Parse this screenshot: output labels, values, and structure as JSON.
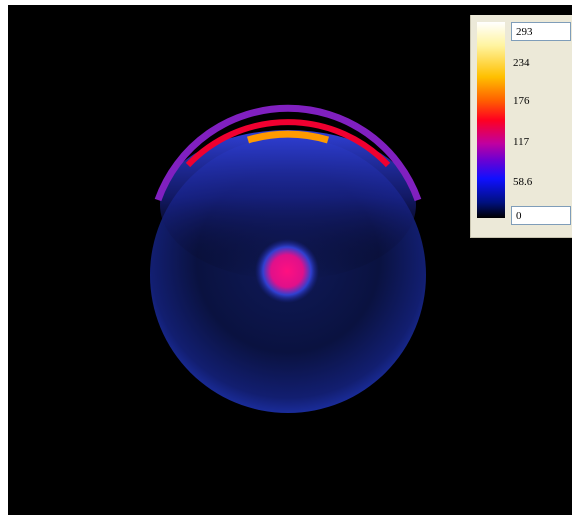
{
  "colorbar": {
    "max_input": "293",
    "ticks": [
      "234",
      "176",
      "117",
      "58.6"
    ],
    "min_input": "0"
  }
}
